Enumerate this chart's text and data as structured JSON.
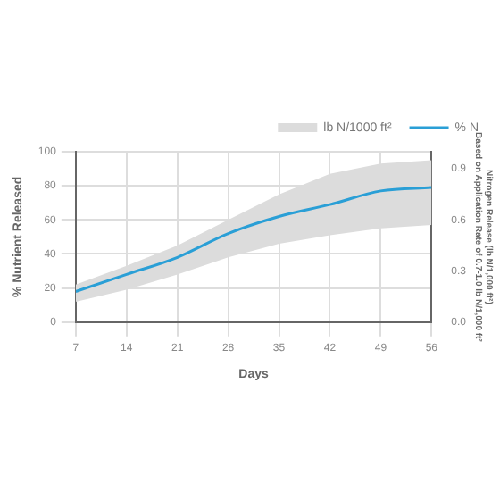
{
  "chart_data": {
    "type": "line",
    "xlabel": "Days",
    "ylabel": "% Nutrient Released",
    "y2label": "Nitrogen Release (lb N/1,000 ft²)",
    "annotations": [
      "Based on Application Rate of 0.7-1.0 lb N/1,000 ft²"
    ],
    "x": [
      7,
      14,
      21,
      28,
      35,
      42,
      49,
      56
    ],
    "series": [
      {
        "name": "lb N/1000 ft²",
        "type": "area",
        "color": "#dcdcdc",
        "values": [
          null,
          null,
          null,
          null,
          null,
          null,
          null,
          null
        ],
        "lower": [
          12,
          19,
          28,
          38,
          46,
          51,
          55,
          57
        ],
        "upper": [
          22,
          33,
          45,
          60,
          75,
          87,
          93,
          95
        ]
      },
      {
        "name": "% N",
        "type": "line",
        "color": "#2a9fd6",
        "values": [
          18,
          28,
          38,
          52,
          62,
          69,
          77,
          79
        ]
      }
    ],
    "xlim": [
      7,
      56
    ],
    "xticks": [
      7,
      14,
      21,
      28,
      35,
      42,
      49,
      56
    ],
    "ylim": [
      0,
      100
    ],
    "yticks": [
      0,
      20,
      40,
      60,
      80,
      100
    ],
    "y2lim": [
      0,
      1
    ],
    "y2ticks": [
      {
        "value": 0,
        "label": "0.0"
      },
      0.3,
      0.6,
      0.9
    ],
    "grid": true,
    "legend": "top",
    "marker": "none",
    "line_style": "solid"
  }
}
